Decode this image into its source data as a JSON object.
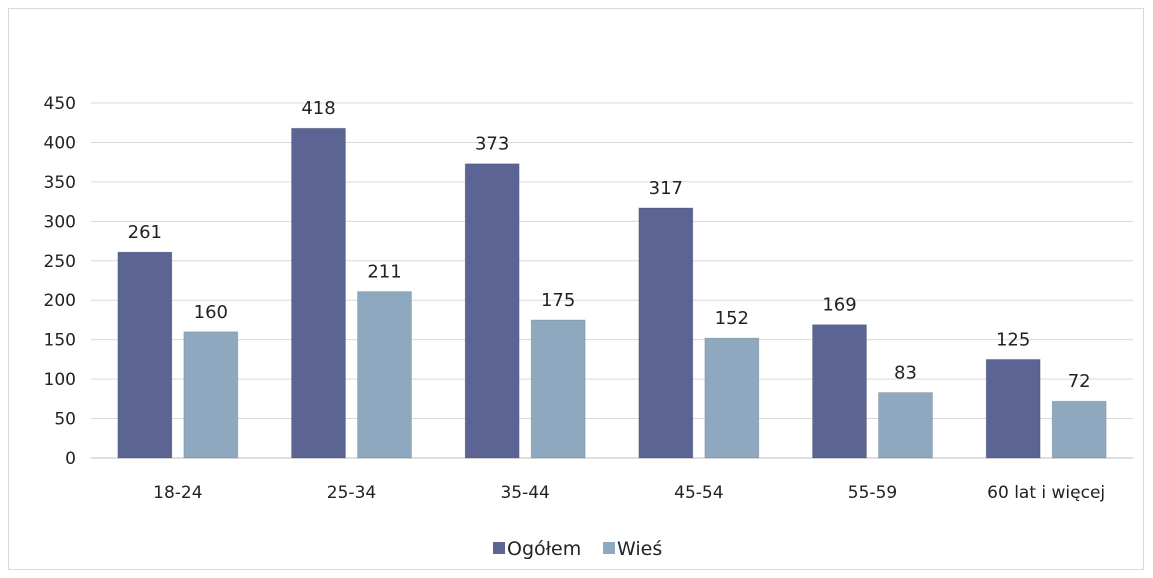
{
  "chart_data": {
    "type": "bar",
    "categories": [
      "18-24",
      "25-34",
      "35-44",
      "45-54",
      "55-59",
      "60 lat i więcej"
    ],
    "series": [
      {
        "name": "Ogółem",
        "values": [
          261,
          418,
          373,
          317,
          169,
          125
        ],
        "color": "#5b6492"
      },
      {
        "name": "Wieś",
        "values": [
          160,
          211,
          175,
          152,
          83,
          72
        ],
        "color": "#8ea9bf"
      }
    ],
    "ylim": [
      0,
      450
    ],
    "yticks": [
      "0",
      "50",
      "100",
      "150",
      "200",
      "250",
      "300",
      "350",
      "400",
      "450"
    ],
    "grid": true,
    "legend": "bottom"
  }
}
